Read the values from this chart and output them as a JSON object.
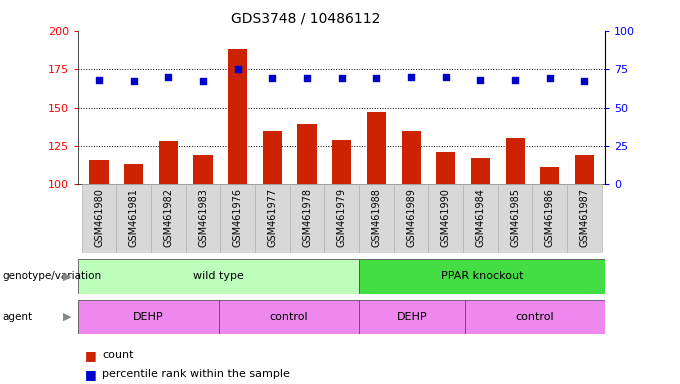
{
  "title": "GDS3748 / 10486112",
  "samples": [
    "GSM461980",
    "GSM461981",
    "GSM461982",
    "GSM461983",
    "GSM461976",
    "GSM461977",
    "GSM461978",
    "GSM461979",
    "GSM461988",
    "GSM461989",
    "GSM461990",
    "GSM461984",
    "GSM461985",
    "GSM461986",
    "GSM461987"
  ],
  "bar_values": [
    116,
    113,
    128,
    119,
    188,
    135,
    139,
    129,
    147,
    135,
    121,
    117,
    130,
    111,
    119
  ],
  "percentile_values": [
    68,
    67,
    70,
    67,
    75,
    69,
    69,
    69,
    69,
    70,
    70,
    68,
    68,
    69,
    67
  ],
  "bar_color": "#cc2200",
  "dot_color": "#0000cc",
  "ymin": 100,
  "ymax": 200,
  "yticks_left": [
    100,
    125,
    150,
    175,
    200
  ],
  "yticks_right": [
    0,
    25,
    50,
    75,
    100
  ],
  "grid_values": [
    125,
    150,
    175
  ],
  "genotype_groups": [
    {
      "label": "wild type",
      "start": 0,
      "end": 8,
      "color": "#bbffbb"
    },
    {
      "label": "PPAR knockout",
      "start": 8,
      "end": 15,
      "color": "#44dd44"
    }
  ],
  "agent_groups": [
    {
      "label": "DEHP",
      "start": 0,
      "end": 4,
      "color": "#ee88ee"
    },
    {
      "label": "control",
      "start": 4,
      "end": 8,
      "color": "#ee88ee"
    },
    {
      "label": "DEHP",
      "start": 8,
      "end": 11,
      "color": "#ee88ee"
    },
    {
      "label": "control",
      "start": 11,
      "end": 15,
      "color": "#ee88ee"
    }
  ],
  "legend_count_color": "#cc2200",
  "legend_dot_color": "#0000cc",
  "genotype_label": "genotype/variation",
  "agent_label": "agent",
  "xlabel_fontsize": 7,
  "title_fontsize": 10,
  "tick_fontsize": 8,
  "bar_width": 0.55
}
